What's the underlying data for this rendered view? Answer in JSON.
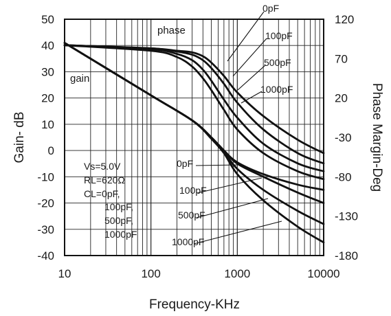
{
  "chart_data": {
    "type": "line",
    "x_scale": "log",
    "xlim": [
      10,
      10000
    ],
    "x_ticks": [
      "10",
      "100",
      "1000",
      "10000"
    ],
    "xlabel": "Frequency-KHz",
    "y_left": {
      "label": "Gain- dB",
      "lim": [
        -40,
        50
      ],
      "ticks": [
        "50",
        "40",
        "30",
        "20",
        "10",
        "0",
        "-10",
        "-20",
        "-30",
        "-40"
      ]
    },
    "y_right": {
      "label": "Phase Margin-Deg",
      "lim": [
        -180,
        120
      ],
      "ticks": [
        "120",
        "70",
        "20",
        "-30",
        "-80",
        "-130",
        "-180"
      ]
    },
    "grid": true,
    "annotations": {
      "phase": "phase",
      "gain": "gain",
      "conditions": [
        "Vs=5.0V",
        "RL=620Ω",
        "CL=0pF,",
        "100pF,",
        "500pF,",
        "1000pF"
      ]
    },
    "series": [
      {
        "name": "0pF",
        "group": "phase",
        "axis": "right",
        "x": [
          10,
          100,
          200,
          300,
          400,
          500,
          700,
          1000,
          2000,
          5000,
          10000
        ],
        "y": [
          87,
          83,
          80,
          78,
          73,
          65,
          48,
          27,
          -3,
          -33,
          -50
        ]
      },
      {
        "name": "100pF",
        "group": "phase",
        "axis": "right",
        "x": [
          10,
          100,
          200,
          300,
          400,
          500,
          700,
          1000,
          2000,
          5000,
          10000
        ],
        "y": [
          87,
          83,
          79,
          75,
          68,
          58,
          38,
          14,
          -20,
          -50,
          -63
        ]
      },
      {
        "name": "500pF",
        "group": "phase",
        "axis": "right",
        "x": [
          10,
          100,
          200,
          300,
          400,
          500,
          700,
          1000,
          2000,
          5000,
          10000
        ],
        "y": [
          87,
          82,
          76,
          68,
          56,
          42,
          18,
          -5,
          -38,
          -63,
          -73
        ]
      },
      {
        "name": "1000pF",
        "group": "phase",
        "axis": "right",
        "x": [
          10,
          100,
          200,
          300,
          400,
          500,
          700,
          1000,
          2000,
          5000,
          10000
        ],
        "y": [
          87,
          80,
          72,
          60,
          45,
          30,
          5,
          -20,
          -50,
          -73,
          -83
        ]
      },
      {
        "name": "0pF",
        "group": "gain",
        "axis": "left",
        "x": [
          10,
          100,
          300,
          500,
          700,
          1000,
          2000,
          5000,
          10000
        ],
        "y": [
          41,
          21,
          11.5,
          5,
          0,
          -4.5,
          -9,
          -13,
          -15
        ]
      },
      {
        "name": "100pF",
        "group": "gain",
        "axis": "left",
        "x": [
          10,
          100,
          300,
          500,
          700,
          1000,
          2000,
          5000,
          10000
        ],
        "y": [
          41,
          21,
          11.5,
          5,
          0,
          -5,
          -10,
          -16,
          -20
        ]
      },
      {
        "name": "500pF",
        "group": "gain",
        "axis": "left",
        "x": [
          10,
          100,
          300,
          500,
          700,
          1000,
          2000,
          5000,
          10000
        ],
        "y": [
          41,
          21,
          11.5,
          5,
          -0.5,
          -7,
          -15,
          -23,
          -28
        ]
      },
      {
        "name": "1000pF",
        "group": "gain",
        "axis": "left",
        "x": [
          10,
          100,
          300,
          500,
          700,
          1000,
          2000,
          5000,
          10000
        ],
        "y": [
          41,
          21,
          11.5,
          4.5,
          -1,
          -9,
          -19,
          -29,
          -35
        ]
      }
    ],
    "curve_labels": [
      {
        "text": "0pF",
        "group": "phase"
      },
      {
        "text": "100pF",
        "group": "phase"
      },
      {
        "text": "500pF",
        "group": "phase"
      },
      {
        "text": "1000pF",
        "group": "phase"
      },
      {
        "text": "0pF",
        "group": "gain"
      },
      {
        "text": "100pF",
        "group": "gain"
      },
      {
        "text": "500pF",
        "group": "gain"
      },
      {
        "text": "1000pF",
        "group": "gain"
      }
    ]
  }
}
